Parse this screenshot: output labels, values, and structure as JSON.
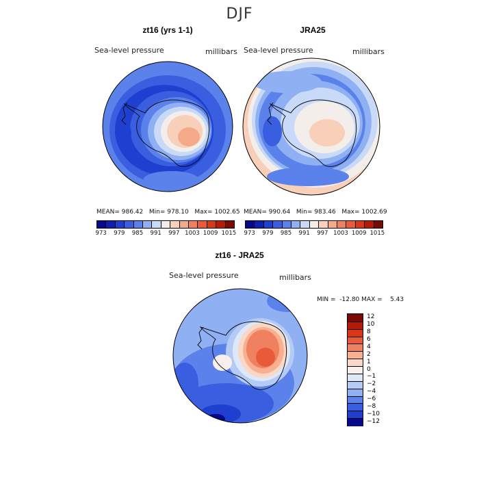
{
  "figure": {
    "title": "DJF"
  },
  "panels": [
    {
      "title": "zt16 (yrs 1-1)",
      "variable": "Sea-level pressure",
      "units": "millibars",
      "stats": {
        "mean_label": "MEAN=",
        "mean": "986.42",
        "min_label": "Min=",
        "min": "978.10",
        "max_label": "Max=",
        "max": "1002.65"
      },
      "colorbar_labels": [
        "973",
        "979",
        "985",
        "991",
        "997",
        "1003",
        "1009",
        "1015"
      ]
    },
    {
      "title": "JRA25",
      "variable": "Sea-level pressure",
      "units": "millibars",
      "stats": {
        "mean_label": "MEAN=",
        "mean": "990.64",
        "min_label": "Min=",
        "min": "983.46",
        "max_label": "Max=",
        "max": "1002.69"
      },
      "colorbar_labels": [
        "973",
        "979",
        "985",
        "991",
        "997",
        "1003",
        "1009",
        "1015"
      ]
    },
    {
      "title": "zt16 - JRA25",
      "variable": "Sea-level pressure",
      "units": "millibars",
      "minmax": "MIN =  -12.80 MAX =    5.43",
      "colorbar_labels": [
        "12",
        "10",
        "8",
        "6",
        "4",
        "2",
        "1",
        "0",
        "−1",
        "−2",
        "−4",
        "−6",
        "−8",
        "−10",
        "−12"
      ]
    }
  ],
  "colors": {
    "abs_scale": [
      "#08088a",
      "#0f1fb0",
      "#1f3fd0",
      "#3a5ee0",
      "#5a82ea",
      "#8fb0f2",
      "#c8daf8",
      "#f4eeea",
      "#f8cfb8",
      "#f4aa88",
      "#ef8060",
      "#e85a38",
      "#d83818",
      "#b81808",
      "#7a0a04"
    ],
    "diff_scale": [
      "#7a0a04",
      "#b81808",
      "#d83818",
      "#e85a38",
      "#ef8060",
      "#f8b090",
      "#fbd8c6",
      "#f8f0ec",
      "#dde8fb",
      "#b5cbf6",
      "#8fb0f2",
      "#5a82ea",
      "#3a5ee0",
      "#1f3fd0",
      "#08088a"
    ]
  }
}
